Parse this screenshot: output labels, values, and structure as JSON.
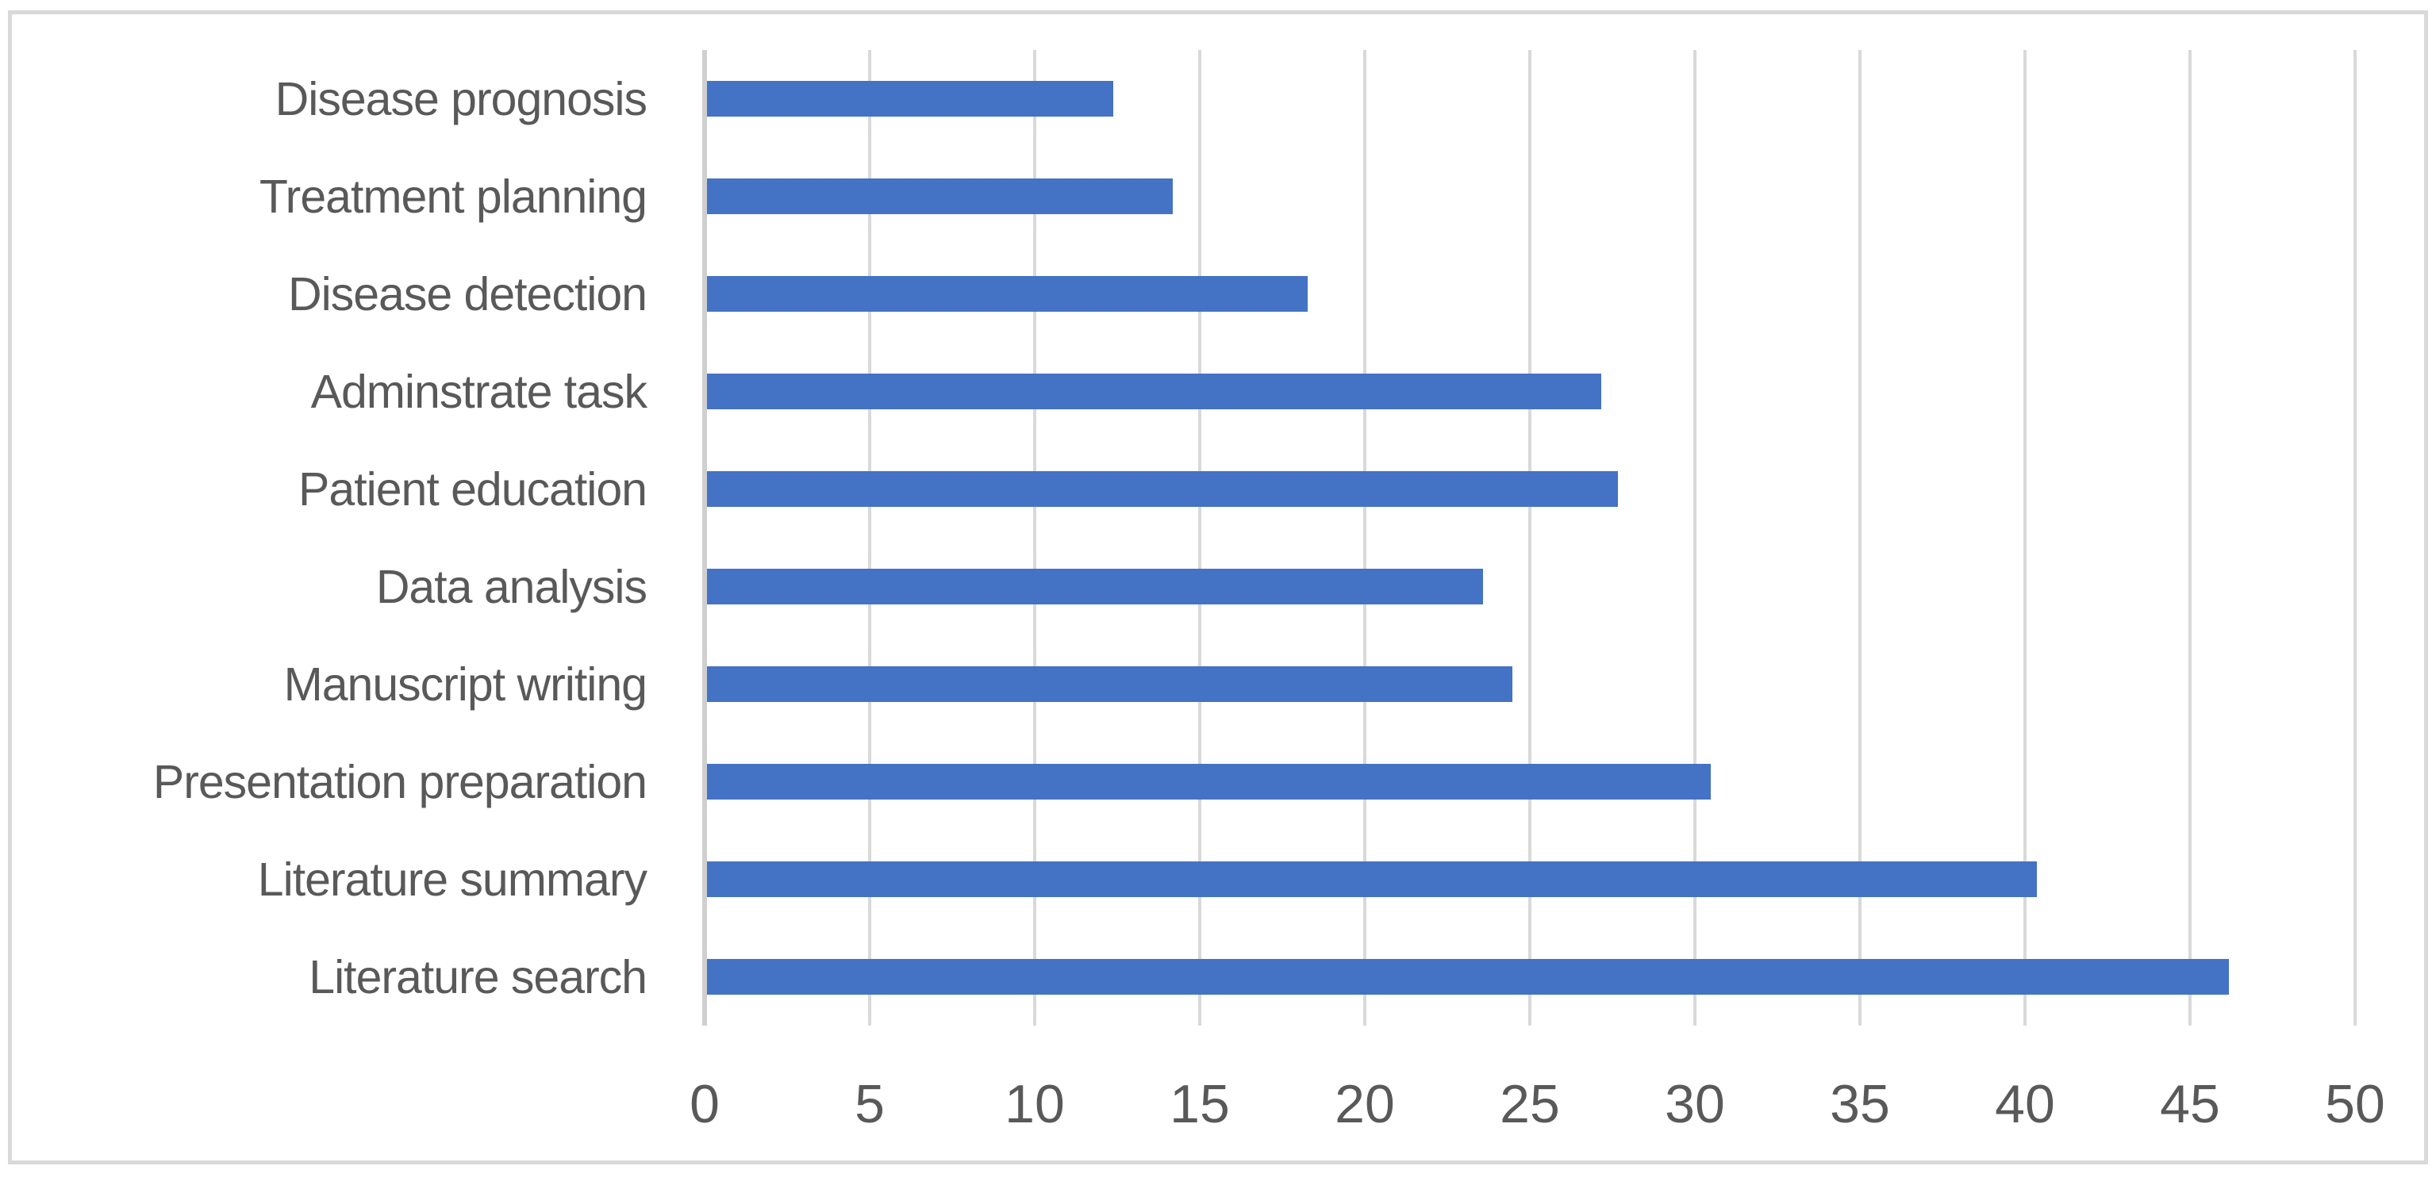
{
  "chart_data": {
    "type": "bar",
    "orientation": "horizontal",
    "title": "",
    "xlabel": "",
    "ylabel": "",
    "categories": [
      "Disease prognosis",
      "Treatment planning",
      "Disease detection",
      "Adminstrate task",
      "Patient education",
      "Data analysis",
      "Manuscript writing",
      "Presentation preparation",
      "Literature summary",
      "Literature search"
    ],
    "values": [
      12.3,
      14.1,
      18.2,
      27.1,
      27.6,
      23.5,
      24.4,
      30.4,
      40.3,
      46.1
    ],
    "xlim": [
      0,
      50
    ],
    "xticks": [
      0,
      5,
      10,
      15,
      20,
      25,
      30,
      35,
      40,
      45,
      50
    ],
    "grid": true,
    "legend": false,
    "colors": {
      "bar": "#4472C4",
      "gridline": "#D9D9D9",
      "axis_line": "#CFCFCF",
      "text": "#595959",
      "frame_border": "#D9D9D9",
      "background": "#FFFFFF"
    }
  }
}
